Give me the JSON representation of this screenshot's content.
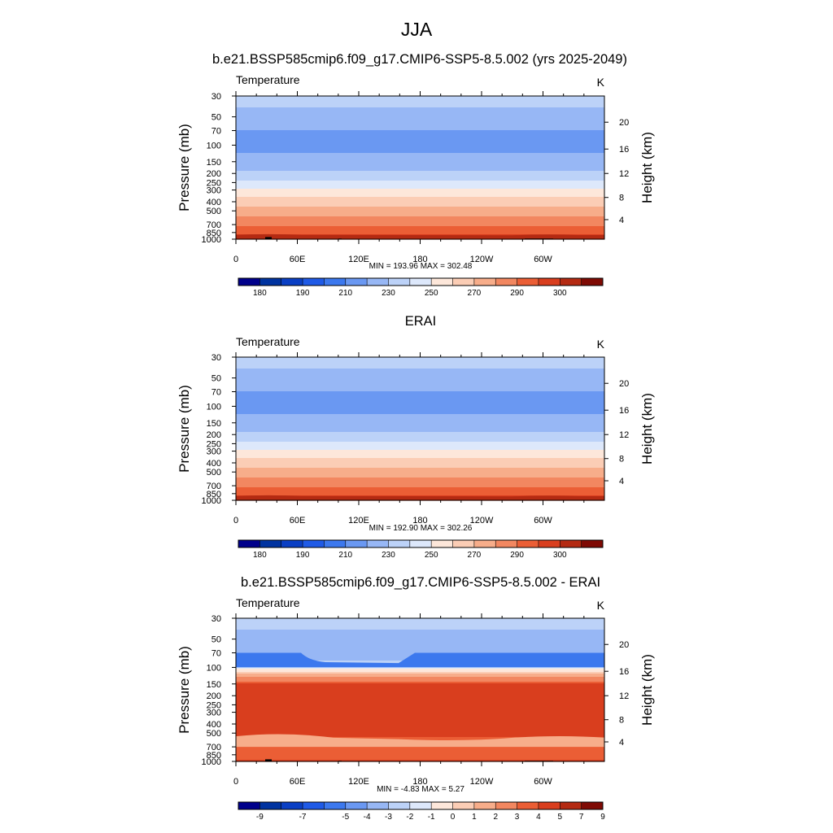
{
  "figure_title": "JJA",
  "chart_data": [
    {
      "type": "heatmap",
      "title": "b.e21.BSSP585cmip6.f09_g17.CMIP6-SSP5-8.5.002 (yrs 2025-2049)",
      "variable": "Temperature",
      "units": "K",
      "ylabel": "Pressure (mb)",
      "ylabel_right": "Height (km)",
      "x_ticks": [
        "0",
        "60E",
        "120E",
        "180",
        "120W",
        "60W"
      ],
      "x_range_deg": [
        0,
        360
      ],
      "pressure_ticks": [
        30,
        50,
        70,
        100,
        150,
        200,
        250,
        300,
        400,
        500,
        700,
        850,
        1000
      ],
      "height_ticks": [
        4,
        8,
        12,
        16,
        20
      ],
      "stats": "MIN = 193.96  MAX = 302.48",
      "colorbar_levels": [
        175,
        180,
        185,
        190,
        200,
        210,
        220,
        230,
        240,
        250,
        260,
        270,
        280,
        290,
        295,
        300
      ],
      "colorbar_labels": [
        "180",
        "190",
        "210",
        "230",
        "250",
        "270",
        "290",
        "300"
      ],
      "colorbar_label_positions": [
        1,
        3,
        5,
        7,
        9,
        11,
        13,
        15
      ],
      "profile_pressure": [
        30,
        40,
        50,
        60,
        70,
        85,
        100,
        120,
        150,
        175,
        200,
        225,
        250,
        275,
        300,
        350,
        400,
        450,
        500,
        600,
        700,
        775,
        850,
        925,
        1000
      ],
      "profile_value": [
        225,
        220,
        215,
        212,
        210,
        208,
        207,
        210,
        215,
        218,
        222,
        228,
        232,
        237,
        242,
        249,
        255,
        260,
        265,
        272,
        279,
        283,
        287,
        292,
        295
      ],
      "terrain": true
    },
    {
      "type": "heatmap",
      "title": "ERAI",
      "variable": "Temperature",
      "units": "K",
      "ylabel": "Pressure (mb)",
      "ylabel_right": "Height (km)",
      "x_ticks": [
        "0",
        "60E",
        "120E",
        "180",
        "120W",
        "60W"
      ],
      "x_range_deg": [
        0,
        360
      ],
      "pressure_ticks": [
        30,
        50,
        70,
        100,
        150,
        200,
        250,
        300,
        400,
        500,
        700,
        850,
        1000
      ],
      "height_ticks": [
        4,
        8,
        12,
        16,
        20
      ],
      "stats": "MIN = 192.90  MAX = 302.26",
      "colorbar_levels": [
        175,
        180,
        185,
        190,
        200,
        210,
        220,
        230,
        240,
        250,
        260,
        270,
        280,
        290,
        295,
        300
      ],
      "colorbar_labels": [
        "180",
        "190",
        "210",
        "230",
        "250",
        "270",
        "290",
        "300"
      ],
      "colorbar_label_positions": [
        1,
        3,
        5,
        7,
        9,
        11,
        13,
        15
      ],
      "profile_pressure": [
        30,
        40,
        50,
        60,
        70,
        85,
        100,
        120,
        150,
        175,
        200,
        225,
        250,
        275,
        300,
        350,
        400,
        450,
        500,
        600,
        700,
        775,
        850,
        925,
        1000
      ],
      "profile_value": [
        225,
        220,
        215,
        212,
        210,
        208,
        207,
        210,
        215,
        218,
        222,
        228,
        232,
        237,
        242,
        249,
        255,
        260,
        265,
        272,
        279,
        283,
        287,
        292,
        295
      ],
      "terrain": false
    },
    {
      "type": "heatmap",
      "title": "b.e21.BSSP585cmip6.f09_g17.CMIP6-SSP5-8.5.002 - ERAI",
      "variable": "Temperature",
      "units": "K",
      "ylabel": "Pressure (mb)",
      "ylabel_right": "Height (km)",
      "x_ticks": [
        "0",
        "60E",
        "120E",
        "180",
        "120W",
        "60W"
      ],
      "x_range_deg": [
        0,
        360
      ],
      "pressure_ticks": [
        30,
        50,
        70,
        100,
        150,
        200,
        250,
        300,
        400,
        500,
        700,
        850,
        1000
      ],
      "height_ticks": [
        4,
        8,
        12,
        16,
        20
      ],
      "stats": "MIN = -4.83  MAX =  5.27",
      "colorbar_levels": [
        -10,
        -9,
        -8,
        -7,
        -6,
        -5,
        -4,
        -3,
        -2,
        -1,
        0,
        1,
        2,
        3,
        4,
        5,
        7,
        9
      ],
      "colorbar_labels": [
        "-9",
        "-7",
        "-5",
        "-4",
        "-3",
        "-2",
        "-1",
        "0",
        "1",
        "2",
        "3",
        "4",
        "5",
        "7",
        "9"
      ],
      "colorbar_label_positions": [
        1,
        3,
        5,
        6,
        7,
        8,
        9,
        10,
        11,
        12,
        13,
        14,
        15,
        16,
        17
      ],
      "profile_pressure": [
        30,
        40,
        50,
        60,
        70,
        85,
        100,
        110,
        120,
        135,
        150,
        200,
        300,
        400,
        500,
        600,
        700,
        775,
        850,
        925,
        1000
      ],
      "profile_value": [
        -3.6,
        -4.0,
        -4.3,
        -4.5,
        -4.5,
        -4.0,
        -2.5,
        -1.0,
        0.8,
        1.5,
        3.2,
        3.5,
        3.5,
        3.5,
        3.3,
        2.8,
        2.3,
        2.6,
        2.3,
        2.8,
        3.2
      ],
      "terrain": true
    }
  ]
}
